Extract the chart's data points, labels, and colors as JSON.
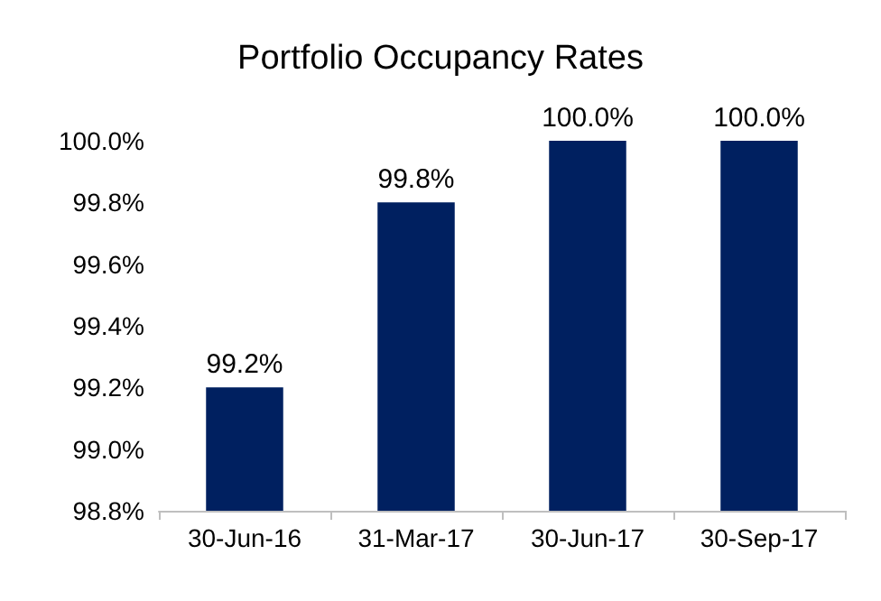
{
  "chart_data": {
    "type": "bar",
    "title": "Portfolio Occupancy Rates",
    "categories": [
      "30-Jun-16",
      "31-Mar-17",
      "30-Jun-17",
      "30-Sep-17"
    ],
    "values": [
      99.2,
      99.8,
      100.0,
      100.0
    ],
    "value_labels": [
      "99.2%",
      "99.8%",
      "100.0%",
      "100.0%"
    ],
    "color": "#002060",
    "ylim": [
      98.8,
      100.0
    ],
    "yticks": [
      {
        "value": 98.8,
        "label": "98.8%"
      },
      {
        "value": 99.0,
        "label": "99.0%"
      },
      {
        "value": 99.2,
        "label": "99.2%"
      },
      {
        "value": 99.4,
        "label": "99.4%"
      },
      {
        "value": 99.6,
        "label": "99.6%"
      },
      {
        "value": 99.8,
        "label": "99.8%"
      },
      {
        "value": 100.0,
        "label": "100.0%"
      }
    ],
    "grid": false
  }
}
